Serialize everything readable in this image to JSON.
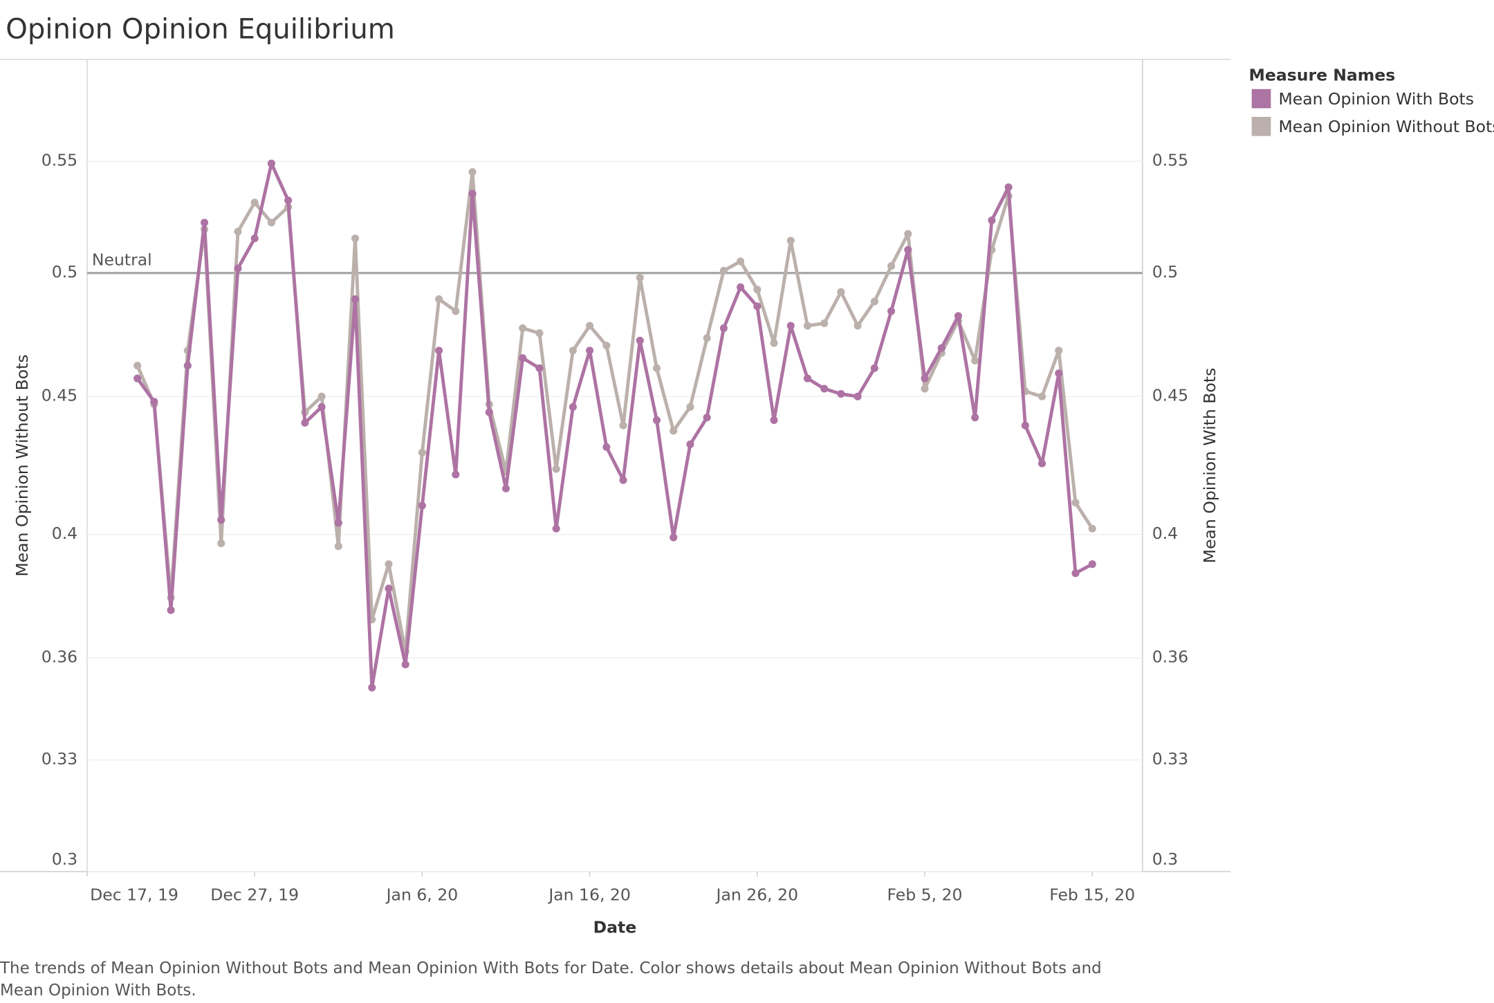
{
  "chart_data": {
    "type": "line",
    "title": "Opinion Opinion Equilibrium",
    "caption": "The trends of Mean Opinion Without Bots and Mean Opinion With Bots for Date.  Color shows details about Mean Opinion Without Bots and Mean Opinion With Bots.",
    "x_label": "Date",
    "y_label": "Mean Opinion Without Bots",
    "y2_label": "Mean Opinion With Bots",
    "legend_title": "Measure Names",
    "legend_position": "right",
    "log_scale": true,
    "grid": true,
    "x": [
      "2019-12-20",
      "2019-12-21",
      "2019-12-22",
      "2019-12-23",
      "2019-12-24",
      "2019-12-25",
      "2019-12-26",
      "2019-12-27",
      "2019-12-28",
      "2019-12-29",
      "2019-12-30",
      "2019-12-31",
      "2020-01-01",
      "2020-01-02",
      "2020-01-03",
      "2020-01-04",
      "2020-01-05",
      "2020-01-06",
      "2020-01-07",
      "2020-01-08",
      "2020-01-09",
      "2020-01-10",
      "2020-01-11",
      "2020-01-12",
      "2020-01-13",
      "2020-01-14",
      "2020-01-15",
      "2020-01-16",
      "2020-01-17",
      "2020-01-18",
      "2020-01-19",
      "2020-01-20",
      "2020-01-21",
      "2020-01-22",
      "2020-01-23",
      "2020-01-24",
      "2020-01-25",
      "2020-01-26",
      "2020-01-27",
      "2020-01-28",
      "2020-01-29",
      "2020-01-30",
      "2020-01-31",
      "2020-02-01",
      "2020-02-02",
      "2020-02-03",
      "2020-02-04",
      "2020-02-05",
      "2020-02-06",
      "2020-02-07",
      "2020-02-08",
      "2020-02-09",
      "2020-02-10",
      "2020-02-11",
      "2020-02-12",
      "2020-02-13",
      "2020-02-14",
      "2020-02-15"
    ],
    "xlim": [
      "2019-12-17",
      "2020-02-18"
    ],
    "xticks": [
      {
        "value": "2019-12-17",
        "label": "Dec 17, 19"
      },
      {
        "value": "2019-12-27",
        "label": "Dec 27, 19"
      },
      {
        "value": "2020-01-06",
        "label": "Jan 6, 20"
      },
      {
        "value": "2020-01-16",
        "label": "Jan 16, 20"
      },
      {
        "value": "2020-01-26",
        "label": "Jan 26, 20"
      },
      {
        "value": "2020-02-05",
        "label": "Feb 5, 20"
      },
      {
        "value": "2020-02-15",
        "label": "Feb 15, 20"
      }
    ],
    "ylim": [
      0.3,
      0.6
    ],
    "yticks": [
      0.3,
      0.33,
      0.36,
      0.4,
      0.45,
      0.5,
      0.55
    ],
    "y2lim": [
      0.3,
      0.6
    ],
    "y2ticks": [
      0.3,
      0.33,
      0.36,
      0.4,
      0.45,
      0.5,
      0.55
    ],
    "reference_line": {
      "value": 0.5,
      "label": "Neutral"
    },
    "series": [
      {
        "name": "Mean Opinion With Bots",
        "color": "#ad73a3",
        "axis": "y2",
        "values": [
          0.457,
          0.448,
          0.375,
          0.462,
          0.522,
          0.405,
          0.502,
          0.515,
          0.549,
          0.532,
          0.44,
          0.446,
          0.404,
          0.489,
          0.351,
          0.382,
          0.358,
          0.41,
          0.468,
          0.421,
          0.535,
          0.444,
          0.416,
          0.465,
          0.461,
          0.402,
          0.446,
          0.468,
          0.431,
          0.419,
          0.472,
          0.441,
          0.399,
          0.432,
          0.442,
          0.477,
          0.494,
          0.486,
          0.441,
          0.478,
          0.457,
          0.453,
          0.451,
          0.45,
          0.461,
          0.484,
          0.51,
          0.457,
          0.469,
          0.482,
          0.442,
          0.523,
          0.538,
          0.439,
          0.425,
          0.459,
          0.387,
          0.39
        ]
      },
      {
        "name": "Mean Opinion Without Bots",
        "color": "#bbb0ab",
        "values": [
          0.462,
          0.447,
          0.379,
          0.468,
          0.519,
          0.397,
          0.518,
          0.531,
          0.522,
          0.529,
          0.444,
          0.45,
          0.396,
          0.515,
          0.372,
          0.39,
          0.362,
          0.429,
          0.489,
          0.484,
          0.545,
          0.447,
          0.422,
          0.477,
          0.475,
          0.423,
          0.468,
          0.478,
          0.47,
          0.439,
          0.498,
          0.461,
          0.437,
          0.446,
          0.473,
          0.501,
          0.505,
          0.493,
          0.471,
          0.514,
          0.478,
          0.479,
          0.492,
          0.478,
          0.488,
          0.503,
          0.517,
          0.453,
          0.467,
          0.48,
          0.464,
          0.51,
          0.534,
          0.452,
          0.45,
          0.468,
          0.411,
          0.402
        ]
      }
    ]
  }
}
